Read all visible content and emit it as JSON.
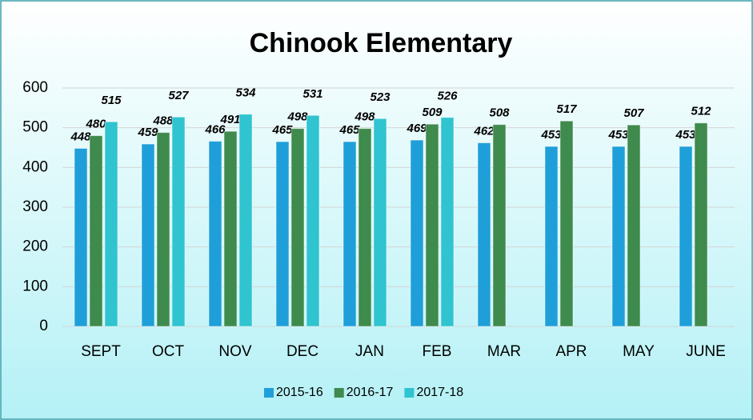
{
  "chart_data": {
    "type": "bar",
    "title": "Chinook Elementary",
    "categories": [
      "SEPT",
      "OCT",
      "NOV",
      "DEC",
      "JAN",
      "FEB",
      "MAR",
      "APR",
      "MAY",
      "JUNE"
    ],
    "series": [
      {
        "name": "2015-16",
        "color": "#1f9fd9",
        "values": [
          448,
          459,
          466,
          465,
          465,
          469,
          462,
          453,
          453,
          453
        ]
      },
      {
        "name": "2016-17",
        "color": "#3f8a4d",
        "values": [
          480,
          488,
          491,
          498,
          498,
          509,
          508,
          517,
          507,
          512
        ]
      },
      {
        "name": "2017-18",
        "color": "#2fc4d0",
        "values": [
          515,
          527,
          534,
          531,
          523,
          526,
          null,
          null,
          null,
          null
        ]
      }
    ],
    "ylim": [
      0,
      600
    ],
    "yticks": [
      0,
      100,
      200,
      300,
      400,
      500,
      600
    ],
    "grid": true,
    "legend": "bottom"
  }
}
